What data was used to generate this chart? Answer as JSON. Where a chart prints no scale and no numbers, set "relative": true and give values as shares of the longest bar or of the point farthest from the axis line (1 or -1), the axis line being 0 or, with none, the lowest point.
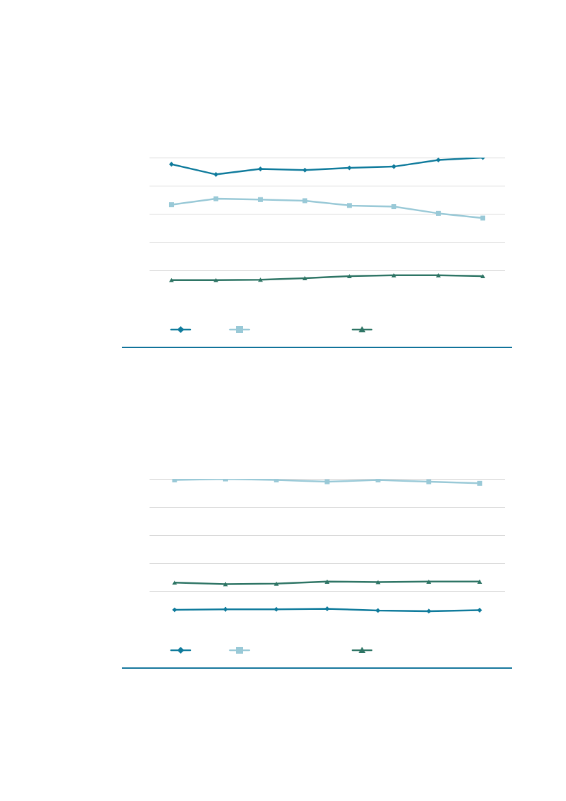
{
  "chart_data": [
    {
      "type": "line",
      "relative": true,
      "grid": "y",
      "categories": [
        null,
        null,
        null,
        null,
        null,
        null,
        null,
        null
      ],
      "series": [
        {
          "color": "#0f7b9c",
          "marker": "diamond",
          "values": [
            0.953,
            0.88,
            0.919,
            0.911,
            0.927,
            0.936,
            0.983,
            1
          ]
        },
        {
          "color": "#99c9d7",
          "marker": "square",
          "values": [
            0.665,
            0.707,
            0.701,
            0.693,
            0.659,
            0.651,
            0.603,
            0.57
          ]
        },
        {
          "color": "#2e7565",
          "marker": "triangle",
          "values": [
            0.128,
            0.128,
            0.131,
            0.142,
            0.156,
            0.162,
            0.162,
            0.156
          ]
        }
      ]
    },
    {
      "type": "line",
      "relative": true,
      "grid": "y",
      "categories": [
        null,
        null,
        null,
        null,
        null,
        null,
        null
      ],
      "series": [
        {
          "color": "#0f7b9c",
          "marker": "diamond",
          "values": [
            0.068,
            0.072,
            0.072,
            0.076,
            0.063,
            0.059,
            0.066
          ]
        },
        {
          "color": "#99c9d7",
          "marker": "square",
          "values": [
            0.993,
            1,
            0.993,
            0.98,
            0.993,
            0.98,
            0.969
          ]
        },
        {
          "color": "#2e7565",
          "marker": "triangle",
          "values": [
            0.262,
            0.251,
            0.255,
            0.269,
            0.266,
            0.269,
            0.269
          ]
        }
      ]
    }
  ]
}
